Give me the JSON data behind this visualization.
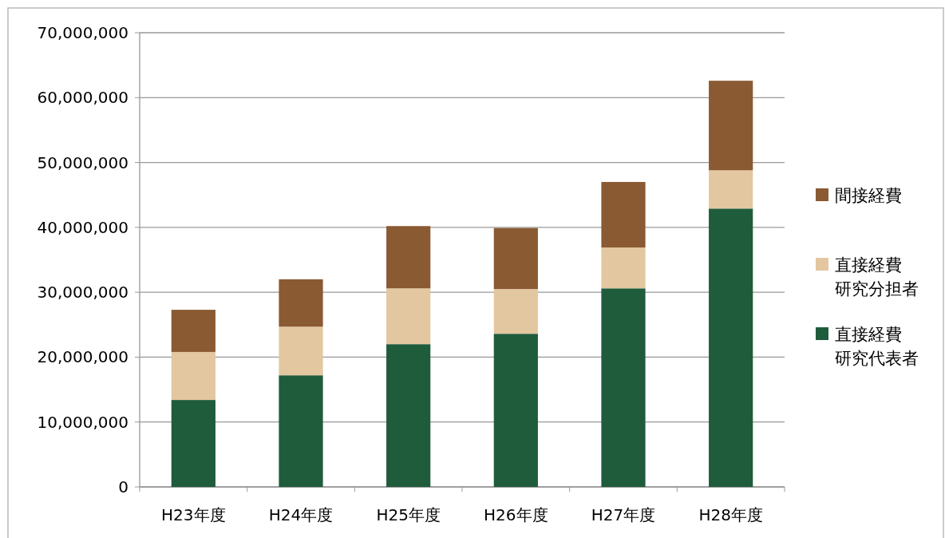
{
  "chart_data": {
    "type": "bar",
    "stacked": true,
    "categories": [
      "H23年度",
      "H24年度",
      "H25年度",
      "H26年度",
      "H27年度",
      "H28年度"
    ],
    "series": [
      {
        "name": "直接経費研究代表者",
        "color": "#1f5c3c",
        "values": [
          13400000,
          17200000,
          22000000,
          23600000,
          30600000,
          42900000
        ]
      },
      {
        "name": "直接経費研究分担者",
        "color": "#e3c7a0",
        "values": [
          7400000,
          7500000,
          8600000,
          6900000,
          6300000,
          5900000
        ]
      },
      {
        "name": "間接経費",
        "color": "#8a5a33",
        "values": [
          6500000,
          7300000,
          9600000,
          9400000,
          10100000,
          13800000
        ]
      }
    ],
    "ylim": [
      0,
      70000000
    ],
    "yticks": [
      {
        "value": 0,
        "label": "0"
      },
      {
        "value": 10000000,
        "label": "10,000,000"
      },
      {
        "value": 20000000,
        "label": "20,000,000"
      },
      {
        "value": 30000000,
        "label": "30,000,000"
      },
      {
        "value": 40000000,
        "label": "40,000,000"
      },
      {
        "value": 50000000,
        "label": "50,000,000"
      },
      {
        "value": 60000000,
        "label": "60,000,000"
      },
      {
        "value": 70000000,
        "label": "70,000,000"
      }
    ],
    "grid": "y",
    "legend": "right"
  }
}
